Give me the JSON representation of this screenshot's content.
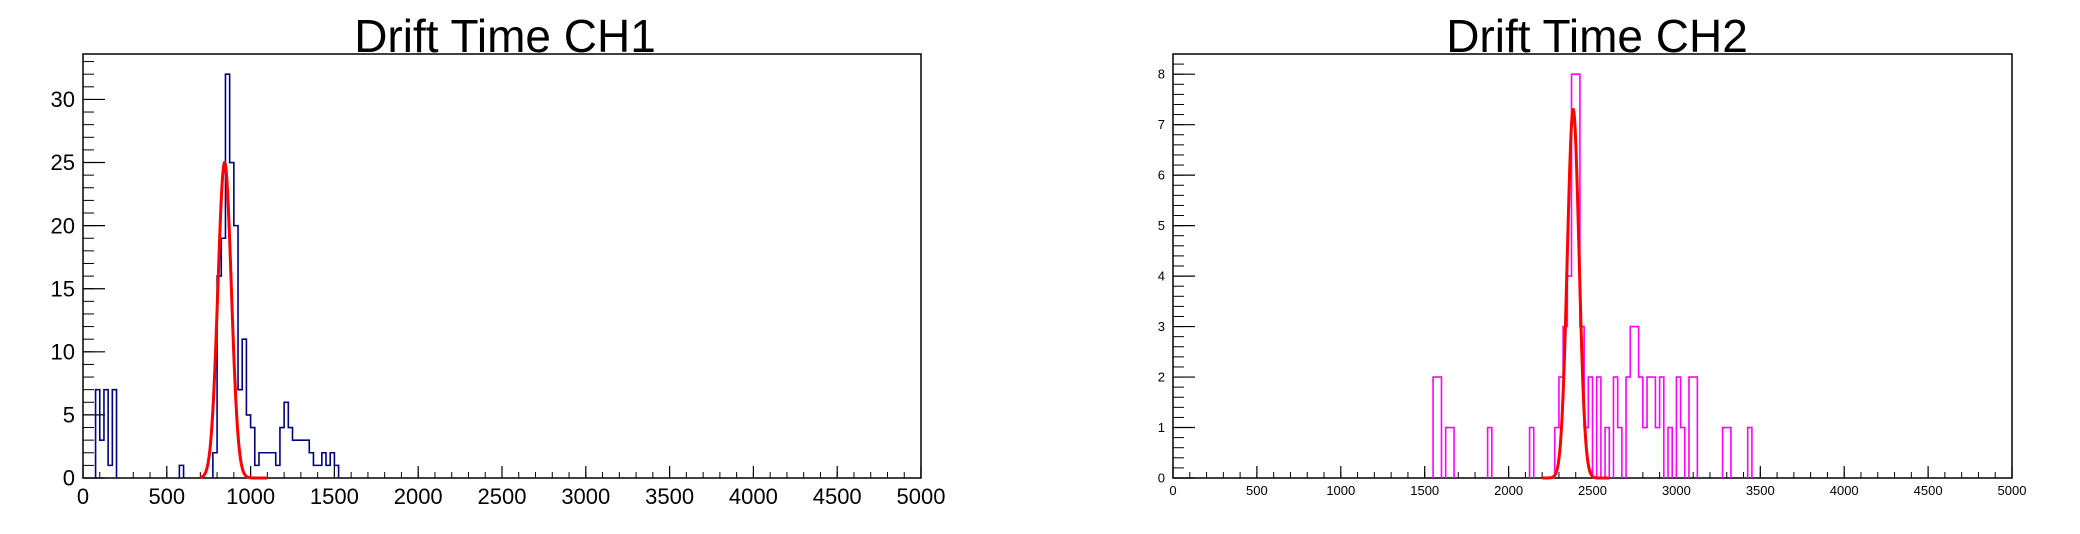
{
  "chart_data": [
    {
      "type": "histogram",
      "title": "Drift Time CH1",
      "xlim": [
        0,
        5000
      ],
      "ylim": [
        0,
        33.6
      ],
      "bin_width": 25,
      "x_ticks": [
        "0",
        "500",
        "1000",
        "1500",
        "2000",
        "2500",
        "3000",
        "3500",
        "4000",
        "4500",
        "5000"
      ],
      "y_ticks": [
        "0",
        "5",
        "10",
        "15",
        "20",
        "25",
        "30"
      ],
      "line_color": "#00007f",
      "fit_color": "#ff0000",
      "bins": [
        [
          75,
          7
        ],
        [
          100,
          3
        ],
        [
          125,
          7
        ],
        [
          150,
          1
        ],
        [
          175,
          7
        ],
        [
          575,
          1
        ],
        [
          775,
          2
        ],
        [
          800,
          16
        ],
        [
          825,
          19
        ],
        [
          850,
          32
        ],
        [
          875,
          25
        ],
        [
          900,
          20
        ],
        [
          925,
          7
        ],
        [
          950,
          11
        ],
        [
          975,
          5
        ],
        [
          1000,
          4
        ],
        [
          1025,
          1
        ],
        [
          1050,
          2
        ],
        [
          1075,
          2
        ],
        [
          1100,
          2
        ],
        [
          1125,
          2
        ],
        [
          1150,
          1
        ],
        [
          1175,
          4
        ],
        [
          1200,
          6
        ],
        [
          1225,
          4
        ],
        [
          1250,
          3
        ],
        [
          1275,
          3
        ],
        [
          1300,
          3
        ],
        [
          1325,
          3
        ],
        [
          1350,
          2
        ],
        [
          1375,
          1
        ],
        [
          1400,
          1
        ],
        [
          1425,
          2
        ],
        [
          1450,
          1
        ],
        [
          1475,
          2
        ],
        [
          1500,
          1
        ]
      ],
      "fit": {
        "function": "gaus",
        "constant": 25,
        "mean": 845,
        "sigma": 40,
        "xrange": [
          700,
          1100
        ]
      }
    },
    {
      "type": "histogram",
      "title": "Drift Time CH2",
      "xlim": [
        0,
        5000
      ],
      "ylim": [
        0,
        8.4
      ],
      "bin_width": 25,
      "x_ticks": [
        "0",
        "500",
        "1000",
        "1500",
        "2000",
        "2500",
        "3000",
        "3500",
        "4000",
        "4500",
        "5000"
      ],
      "y_ticks": [
        "0",
        "1",
        "2",
        "3",
        "4",
        "5",
        "6",
        "7",
        "8"
      ],
      "line_color": "#ff00ff",
      "fit_color": "#ff0000",
      "bins": [
        [
          1550,
          2
        ],
        [
          1575,
          2
        ],
        [
          1625,
          1
        ],
        [
          1650,
          1
        ],
        [
          1875,
          1
        ],
        [
          2125,
          1
        ],
        [
          2275,
          1
        ],
        [
          2300,
          2
        ],
        [
          2325,
          3
        ],
        [
          2350,
          4
        ],
        [
          2375,
          8
        ],
        [
          2400,
          8
        ],
        [
          2425,
          3
        ],
        [
          2450,
          1
        ],
        [
          2475,
          2
        ],
        [
          2525,
          2
        ],
        [
          2575,
          1
        ],
        [
          2625,
          2
        ],
        [
          2650,
          1
        ],
        [
          2700,
          2
        ],
        [
          2725,
          3
        ],
        [
          2750,
          3
        ],
        [
          2775,
          2
        ],
        [
          2800,
          1
        ],
        [
          2825,
          2
        ],
        [
          2850,
          2
        ],
        [
          2875,
          1
        ],
        [
          2900,
          2
        ],
        [
          2950,
          1
        ],
        [
          3000,
          2
        ],
        [
          3025,
          1
        ],
        [
          3075,
          2
        ],
        [
          3100,
          2
        ],
        [
          3275,
          1
        ],
        [
          3300,
          1
        ],
        [
          3425,
          1
        ]
      ],
      "fit": {
        "function": "gaus",
        "constant": 7.3,
        "mean": 2385,
        "sigma": 35,
        "xrange": [
          2200,
          2600
        ]
      }
    }
  ]
}
